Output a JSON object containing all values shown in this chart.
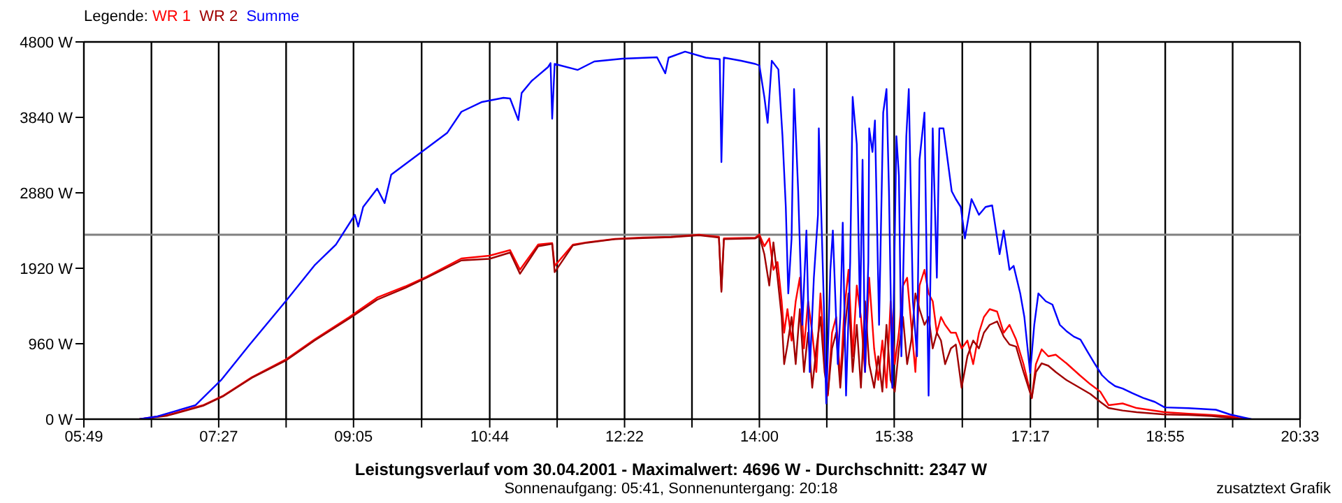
{
  "chart_data": {
    "type": "line",
    "title": "Leistungsverlauf vom 30.04.2001 - Maximalwert: 4696 W - Durchschnitt: 2347 W",
    "subtitle": "Sonnenaufgang: 05:41, Sonnenuntergang: 20:18",
    "annotations": [
      "zusatztext Grafik"
    ],
    "legend_title": "Legende:",
    "legend": "top left",
    "grid": true,
    "xlim": [
      5.8167,
      20.55
    ],
    "xticks": [
      {
        "value": 5.8167,
        "label": "05:49"
      },
      {
        "value": 6.635,
        "label": null
      },
      {
        "value": 7.45,
        "label": "07:27"
      },
      {
        "value": 8.2667,
        "label": null
      },
      {
        "value": 9.0833,
        "label": "09:05"
      },
      {
        "value": 9.9083,
        "label": null
      },
      {
        "value": 10.7333,
        "label": "10:44"
      },
      {
        "value": 11.55,
        "label": null
      },
      {
        "value": 12.3667,
        "label": "12:22"
      },
      {
        "value": 13.1833,
        "label": null
      },
      {
        "value": 14,
        "label": "14:00"
      },
      {
        "value": 14.8167,
        "label": null
      },
      {
        "value": 15.6333,
        "label": "15:38"
      },
      {
        "value": 16.4583,
        "label": null
      },
      {
        "value": 17.2833,
        "label": "17:17"
      },
      {
        "value": 18.1,
        "label": null
      },
      {
        "value": 18.9167,
        "label": "18:55"
      },
      {
        "value": 19.7333,
        "label": null
      },
      {
        "value": 20.55,
        "label": "20:33"
      }
    ],
    "ylim": [
      0,
      4800
    ],
    "yticks": [
      {
        "value": 0,
        "label": "0 W"
      },
      {
        "value": 960,
        "label": "960 W"
      },
      {
        "value": 1920,
        "label": "1920 W"
      },
      {
        "value": 2880,
        "label": "2880 W"
      },
      {
        "value": 3840,
        "label": "3840 W"
      },
      {
        "value": 4800,
        "label": "4800 W"
      }
    ],
    "ref_lines": [
      {
        "axis": "y",
        "value": 2347,
        "color": "#808080"
      }
    ],
    "series": [
      {
        "name": "WR 1",
        "color": "#ff0000",
        "x": [
          6.49,
          6.83,
          7.26,
          7.51,
          7.85,
          8.27,
          8.61,
          9.03,
          9.37,
          9.71,
          9.97,
          10.39,
          10.73,
          10.98,
          11.1,
          11.32,
          11.49,
          11.52,
          11.74,
          11.91,
          12.25,
          12.59,
          12.93,
          13.27,
          13.51,
          13.54,
          13.57,
          13.95,
          14.0,
          14.06,
          14.12,
          14.17,
          14.22,
          14.27,
          14.3,
          14.34,
          14.39,
          14.44,
          14.49,
          14.54,
          14.59,
          14.64,
          14.69,
          14.74,
          14.79,
          14.83,
          14.88,
          14.93,
          14.98,
          15.03,
          15.08,
          15.13,
          15.18,
          15.23,
          15.28,
          15.33,
          15.39,
          15.44,
          15.49,
          15.54,
          15.59,
          15.64,
          15.69,
          15.74,
          15.79,
          15.84,
          15.89,
          15.94,
          16.0,
          16.05,
          16.1,
          16.15,
          16.2,
          16.25,
          16.32,
          16.38,
          16.45,
          16.52,
          16.59,
          16.66,
          16.72,
          16.79,
          16.88,
          16.96,
          17.03,
          17.11,
          17.2,
          17.3,
          17.35,
          17.42,
          17.5,
          17.59,
          17.72,
          17.88,
          18.01,
          18.13,
          18.23,
          18.4,
          18.57,
          18.91,
          19.2,
          19.48,
          19.7,
          19.87
        ],
        "values": [
          0,
          53,
          178,
          302,
          533,
          764,
          1013,
          1298,
          1547,
          1689,
          1813,
          2044,
          2080,
          2151,
          1902,
          2222,
          2240,
          1950,
          2220,
          2250,
          2293,
          2311,
          2320,
          2347,
          2320,
          1640,
          2300,
          2310,
          2350,
          2200,
          2300,
          1900,
          2000,
          1500,
          1100,
          1400,
          1000,
          1500,
          1800,
          900,
          1500,
          1100,
          600,
          1600,
          800,
          300,
          1100,
          1300,
          500,
          1400,
          1900,
          800,
          1700,
          1300,
          600,
          1800,
          900,
          500,
          1000,
          400,
          1500,
          700,
          1100,
          1700,
          1800,
          1200,
          600,
          1700,
          1900,
          1600,
          1500,
          1100,
          1300,
          1200,
          1100,
          1100,
          900,
          1000,
          700,
          1100,
          1300,
          1400,
          1369,
          1100,
          1200,
          1013,
          700,
          267,
          700,
          889,
          800,
          820,
          711,
          560,
          444,
          350,
          178,
          200,
          142,
          89,
          70,
          53,
          36,
          0
        ]
      },
      {
        "name": "WR 2",
        "color": "#a00000",
        "x": [
          6.49,
          6.83,
          7.26,
          7.51,
          7.85,
          8.27,
          8.61,
          9.03,
          9.37,
          9.71,
          9.97,
          10.39,
          10.73,
          10.98,
          11.1,
          11.32,
          11.49,
          11.52,
          11.74,
          11.91,
          12.25,
          12.59,
          12.93,
          13.27,
          13.51,
          13.54,
          13.57,
          13.95,
          14.0,
          14.06,
          14.12,
          14.17,
          14.22,
          14.27,
          14.3,
          14.34,
          14.39,
          14.44,
          14.49,
          14.54,
          14.59,
          14.64,
          14.69,
          14.74,
          14.79,
          14.83,
          14.88,
          14.93,
          14.98,
          15.03,
          15.08,
          15.13,
          15.18,
          15.23,
          15.28,
          15.33,
          15.39,
          15.44,
          15.49,
          15.54,
          15.59,
          15.64,
          15.69,
          15.74,
          15.79,
          15.84,
          15.89,
          15.94,
          16.0,
          16.05,
          16.1,
          16.15,
          16.2,
          16.25,
          16.32,
          16.38,
          16.45,
          16.52,
          16.59,
          16.66,
          16.72,
          16.79,
          16.88,
          16.96,
          17.03,
          17.11,
          17.2,
          17.3,
          17.35,
          17.42,
          17.5,
          17.59,
          17.72,
          17.88,
          18.01,
          18.13,
          18.23,
          18.4,
          18.57,
          18.91,
          19.2,
          19.48,
          19.7,
          19.87
        ],
        "values": [
          0,
          45,
          170,
          295,
          525,
          750,
          1000,
          1280,
          1520,
          1670,
          1800,
          2020,
          2040,
          2120,
          1850,
          2200,
          2230,
          1870,
          2210,
          2245,
          2290,
          2305,
          2315,
          2340,
          2310,
          1620,
          2290,
          2300,
          2330,
          2100,
          1700,
          2250,
          1800,
          1300,
          700,
          942,
          1300,
          700,
          1400,
          600,
          1100,
          400,
          900,
          1300,
          600,
          320,
          900,
          1100,
          400,
          1100,
          1600,
          600,
          1200,
          400,
          1500,
          700,
          400,
          800,
          350,
          1200,
          500,
          350,
          900,
          1300,
          700,
          1000,
          1600,
          1400,
          1200,
          1300,
          900,
          1100,
          1000,
          700,
          900,
          950,
          400,
          800,
          1000,
          900,
          1100,
          1200,
          1244,
          1050,
          950,
          924,
          600,
          270,
          600,
          711,
          680,
          600,
          498,
          400,
          320,
          220,
          142,
          110,
          89,
          60,
          53,
          40,
          18,
          0
        ]
      },
      {
        "name": "Summe",
        "color": "#0000ff",
        "x": [
          6.49,
          6.71,
          7.17,
          7.48,
          7.82,
          8.27,
          8.61,
          8.87,
          9.1,
          9.14,
          9.2,
          9.37,
          9.46,
          9.54,
          9.88,
          10.22,
          10.39,
          10.64,
          10.9,
          10.98,
          11.08,
          11.12,
          11.24,
          11.44,
          11.47,
          11.49,
          11.52,
          11.8,
          12.0,
          12.34,
          12.76,
          12.86,
          12.9,
          13.1,
          13.35,
          13.52,
          13.54,
          13.57,
          13.78,
          13.95,
          14.0,
          14.06,
          14.1,
          14.15,
          14.23,
          14.28,
          14.32,
          14.35,
          14.39,
          14.42,
          14.47,
          14.52,
          14.57,
          14.61,
          14.66,
          14.71,
          14.72,
          14.78,
          14.81,
          14.86,
          14.89,
          14.95,
          14.98,
          15.01,
          15.05,
          15.1,
          15.13,
          15.18,
          15.22,
          15.25,
          15.28,
          15.32,
          15.33,
          15.37,
          15.4,
          15.45,
          15.5,
          15.54,
          15.57,
          15.61,
          15.66,
          15.69,
          15.72,
          15.78,
          15.81,
          15.86,
          15.91,
          15.94,
          16.0,
          16.05,
          16.1,
          16.15,
          16.18,
          16.23,
          16.28,
          16.33,
          16.38,
          16.44,
          16.49,
          16.57,
          16.66,
          16.74,
          16.82,
          16.91,
          16.96,
          17.03,
          17.08,
          17.16,
          17.21,
          17.28,
          17.33,
          17.38,
          17.47,
          17.55,
          17.64,
          17.72,
          17.81,
          17.89,
          17.98,
          18.06,
          18.15,
          18.23,
          18.31,
          18.4,
          18.52,
          18.65,
          18.79,
          18.91,
          19.2,
          19.53,
          19.7,
          19.87,
          19.96
        ],
        "values": [
          0,
          36,
          178,
          498,
          942,
          1511,
          1956,
          2222,
          2600,
          2450,
          2700,
          2933,
          2750,
          3111,
          3378,
          3645,
          3911,
          4036,
          4089,
          4080,
          3805,
          4150,
          4302,
          4480,
          4530,
          3822,
          4520,
          4444,
          4551,
          4587,
          4605,
          4400,
          4600,
          4676,
          4600,
          4580,
          3271,
          4600,
          4560,
          4520,
          4500,
          4100,
          3770,
          4560,
          4450,
          3600,
          2700,
          1600,
          2300,
          4200,
          2900,
          1200,
          2400,
          600,
          1800,
          2600,
          3700,
          1500,
          200,
          1900,
          2400,
          700,
          1300,
          2500,
          300,
          2000,
          4100,
          3500,
          1300,
          3300,
          600,
          2000,
          3700,
          3400,
          3800,
          1200,
          3900,
          4200,
          2900,
          400,
          3600,
          3100,
          800,
          3600,
          4200,
          1500,
          800,
          3300,
          3900,
          300,
          3700,
          1800,
          3700,
          3700,
          3300,
          2900,
          2800,
          2700,
          2300,
          2800,
          2600,
          2700,
          2720,
          2100,
          2400,
          1900,
          1950,
          1600,
          1300,
          587,
          1200,
          1600,
          1500,
          1458,
          1200,
          1120,
          1050,
          1013,
          850,
          711,
          560,
          480,
          420,
          390,
          330,
          270,
          220,
          150,
          140,
          120,
          60,
          20,
          0
        ]
      }
    ]
  }
}
